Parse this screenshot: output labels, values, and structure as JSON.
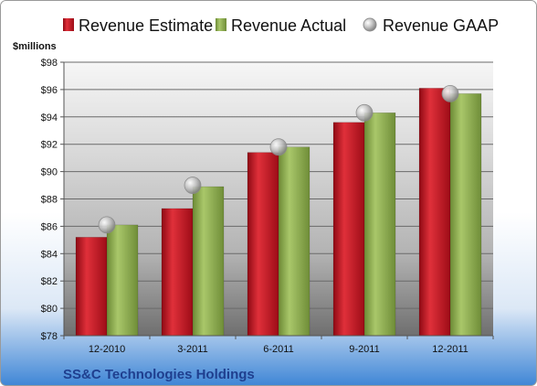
{
  "chart_data": {
    "type": "bar",
    "footer": "SS&C Technologies Holdings",
    "unit_label": "$millions",
    "categories": [
      "12-2010",
      "3-2011",
      "6-2011",
      "9-2011",
      "12-2011"
    ],
    "series": [
      {
        "name": "Revenue Estimate",
        "kind": "bar",
        "color": "#c0111f",
        "values": [
          85.2,
          87.3,
          91.4,
          93.6,
          96.1
        ]
      },
      {
        "name": "Revenue Actual",
        "kind": "bar",
        "color": "#8fb050",
        "values": [
          86.1,
          88.9,
          91.8,
          94.3,
          95.7
        ]
      },
      {
        "name": "Revenue GAAP",
        "kind": "marker",
        "color": "#a8a8a8",
        "values": [
          86.1,
          89.0,
          91.8,
          94.3,
          95.7
        ]
      }
    ],
    "yticks": [
      "$78",
      "$80",
      "$82",
      "$84",
      "$86",
      "$88",
      "$90",
      "$92",
      "$94",
      "$96",
      "$98"
    ],
    "ylim": [
      78,
      98
    ],
    "grid": true,
    "legend_position": "top"
  }
}
